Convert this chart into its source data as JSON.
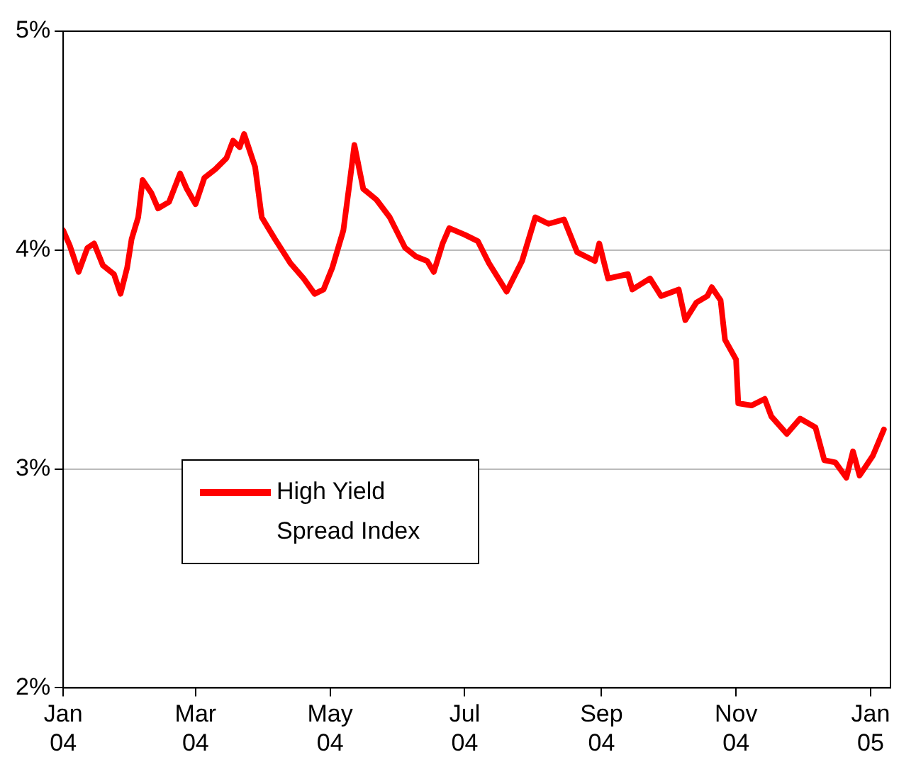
{
  "chart_data": {
    "type": "line",
    "x": [
      "2004-01-01",
      "2004-01-04",
      "2004-01-08",
      "2004-01-12",
      "2004-01-15",
      "2004-01-19",
      "2004-01-24",
      "2004-01-27",
      "2004-01-30",
      "2004-02-01",
      "2004-02-04",
      "2004-02-06",
      "2004-02-10",
      "2004-02-13",
      "2004-02-18",
      "2004-02-23",
      "2004-02-26",
      "2004-03-01",
      "2004-03-05",
      "2004-03-10",
      "2004-03-15",
      "2004-03-18",
      "2004-03-21",
      "2004-03-23",
      "2004-03-28",
      "2004-03-31",
      "2004-04-06",
      "2004-04-13",
      "2004-04-19",
      "2004-04-24",
      "2004-04-28",
      "2004-05-02",
      "2004-05-07",
      "2004-05-10",
      "2004-05-12",
      "2004-05-16",
      "2004-05-22",
      "2004-05-28",
      "2004-06-04",
      "2004-06-09",
      "2004-06-14",
      "2004-06-17",
      "2004-06-21",
      "2004-06-24",
      "2004-07-01",
      "2004-07-07",
      "2004-07-12",
      "2004-07-20",
      "2004-07-27",
      "2004-08-02",
      "2004-08-08",
      "2004-08-15",
      "2004-08-21",
      "2004-08-29",
      "2004-08-31",
      "2004-09-04",
      "2004-09-13",
      "2004-09-15",
      "2004-09-23",
      "2004-09-28",
      "2004-10-06",
      "2004-10-09",
      "2004-10-14",
      "2004-10-19",
      "2004-10-21",
      "2004-10-25",
      "2004-10-27",
      "2004-11-01",
      "2004-11-02",
      "2004-11-08",
      "2004-11-14",
      "2004-11-17",
      "2004-11-24",
      "2004-11-30",
      "2004-12-07",
      "2004-12-11",
      "2004-12-16",
      "2004-12-21",
      "2004-12-24",
      "2004-12-27",
      "2005-01-02",
      "2005-01-07"
    ],
    "series": [
      {
        "name": "High Yield Spread Index",
        "color": "#ff0000",
        "values": [
          4.09,
          4.02,
          3.9,
          4.01,
          4.03,
          3.93,
          3.89,
          3.8,
          3.92,
          4.05,
          4.15,
          4.32,
          4.26,
          4.19,
          4.22,
          4.35,
          4.28,
          4.21,
          4.33,
          4.37,
          4.42,
          4.5,
          4.47,
          4.53,
          4.38,
          4.15,
          4.05,
          3.94,
          3.87,
          3.8,
          3.82,
          3.92,
          4.09,
          4.32,
          4.48,
          4.28,
          4.23,
          4.15,
          4.01,
          3.97,
          3.95,
          3.9,
          4.03,
          4.1,
          4.07,
          4.04,
          3.94,
          3.81,
          3.95,
          4.15,
          4.12,
          4.14,
          3.99,
          3.95,
          4.03,
          3.87,
          3.89,
          3.82,
          3.87,
          3.79,
          3.82,
          3.68,
          3.76,
          3.79,
          3.83,
          3.77,
          3.59,
          3.5,
          3.3,
          3.29,
          3.32,
          3.24,
          3.16,
          3.23,
          3.19,
          3.04,
          3.03,
          2.96,
          3.08,
          2.97,
          3.06,
          3.18
        ]
      }
    ],
    "xlim": [
      "2004-01-01",
      "2005-01-10"
    ],
    "xticks": [
      {
        "value": "2004-01-01",
        "label": "Jan 04"
      },
      {
        "value": "2004-03-01",
        "label": "Mar 04"
      },
      {
        "value": "2004-05-01",
        "label": "May 04"
      },
      {
        "value": "2004-07-01",
        "label": "Jul 04"
      },
      {
        "value": "2004-09-01",
        "label": "Sep 04"
      },
      {
        "value": "2004-11-01",
        "label": "Nov 04"
      },
      {
        "value": "2005-01-01",
        "label": "Jan 05"
      }
    ],
    "ylim": [
      2,
      5
    ],
    "yticks": [
      {
        "value": 2,
        "label": "2%"
      },
      {
        "value": 3,
        "label": "3%"
      },
      {
        "value": 4,
        "label": "4%"
      },
      {
        "value": 5,
        "label": "5%"
      }
    ],
    "grid": "y",
    "legend": "bottom left",
    "marker": "none",
    "line_style": "solid"
  }
}
